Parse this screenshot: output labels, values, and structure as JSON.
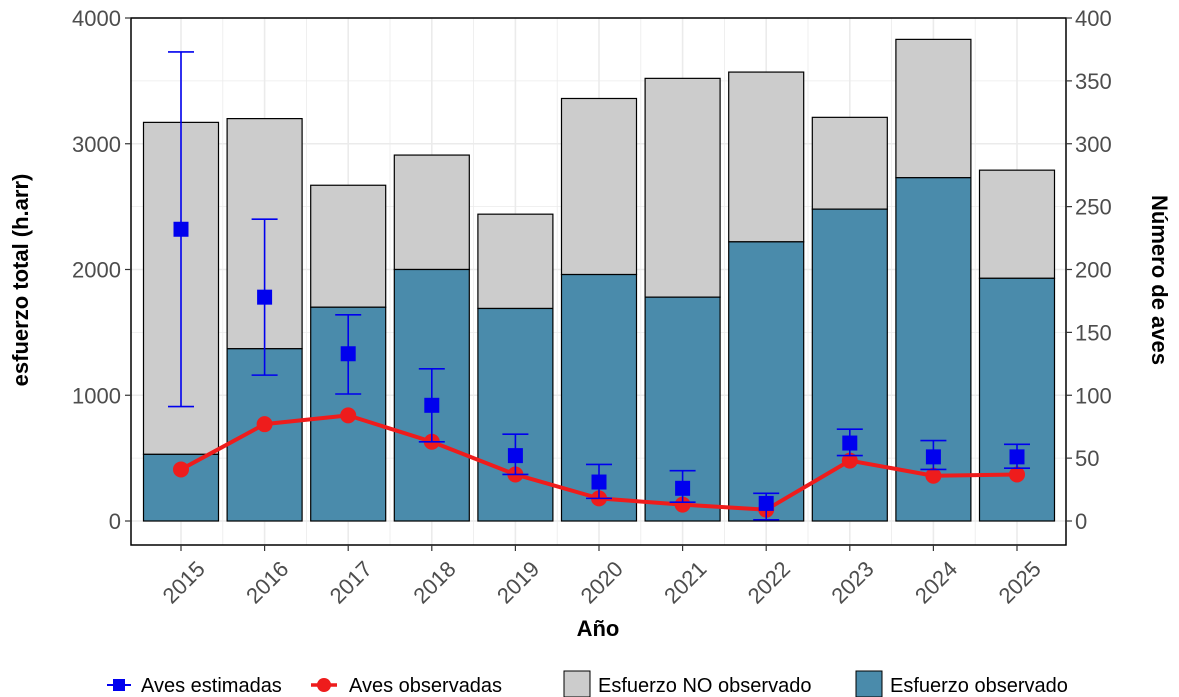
{
  "chart_data": {
    "type": "bar",
    "xlabel": "Año",
    "ylabel_left": "esfuerzo total (h.arr)",
    "ylabel_right": "Número de aves",
    "ylim_left": [
      0,
      4000
    ],
    "ylim_right": [
      0,
      400
    ],
    "left_ticks": [
      "0",
      "1000",
      "2000",
      "3000",
      "4000"
    ],
    "right_ticks": [
      "0",
      "50",
      "100",
      "150",
      "200",
      "250",
      "300",
      "350",
      "400"
    ],
    "categories": [
      "2015",
      "2016",
      "2017",
      "2018",
      "2019",
      "2020",
      "2021",
      "2022",
      "2023",
      "2024",
      "2025"
    ],
    "grid": true,
    "legend_position": "bottom",
    "series": [
      {
        "name": "Esfuerzo observado",
        "kind": "stacked-bar",
        "axis": "left",
        "color": "#4a8bab",
        "values": [
          530,
          1370,
          1700,
          2000,
          1690,
          1960,
          1780,
          2220,
          2480,
          2730,
          1930
        ]
      },
      {
        "name": "Esfuerzo NO observado",
        "kind": "stacked-bar",
        "axis": "left",
        "color": "#cccccc",
        "values": [
          2640,
          1830,
          970,
          910,
          750,
          1400,
          1740,
          1350,
          730,
          1100,
          860
        ]
      },
      {
        "name": "Aves estimadas",
        "kind": "point-errorbar",
        "axis": "right",
        "color": "#0000ee",
        "values": [
          232,
          178,
          133,
          92,
          52,
          31,
          26,
          14,
          62,
          51,
          51
        ],
        "lower": [
          91,
          116,
          101,
          63,
          37,
          18,
          15,
          1,
          52,
          41,
          42
        ],
        "upper": [
          373,
          240,
          164,
          121,
          69,
          45,
          40,
          22,
          73,
          64,
          61
        ]
      },
      {
        "name": "Aves observadas",
        "kind": "line-points",
        "axis": "right",
        "color": "#ee1c1c",
        "values": [
          41,
          77,
          84,
          63,
          37,
          18,
          13,
          9,
          48,
          36,
          37
        ]
      }
    ],
    "legend": [
      {
        "label": "Aves estimadas",
        "symbol": "square-errorbar",
        "color": "#0000ee"
      },
      {
        "label": "Aves observadas",
        "symbol": "line-circle",
        "color": "#ee1c1c"
      },
      {
        "label": "Esfuerzo NO observado",
        "symbol": "box",
        "color": "#cccccc"
      },
      {
        "label": "Esfuerzo observado",
        "symbol": "box",
        "color": "#4a8bab"
      }
    ]
  }
}
